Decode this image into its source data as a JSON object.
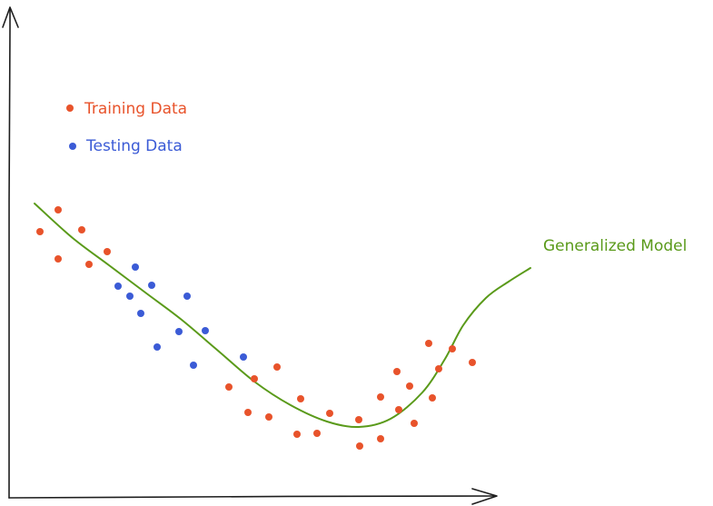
{
  "chart_data": {
    "type": "scatter",
    "title": "",
    "xlabel": "",
    "ylabel": "",
    "grid": false,
    "legend_placement": "top-left",
    "colors": {
      "training": "#e8532b",
      "testing": "#3b5bd6",
      "model": "#5a9a1a",
      "axis": "#1e1e1e"
    },
    "series": [
      {
        "name": "Training Data",
        "kind": "points",
        "points": [
          [
            44,
            255
          ],
          [
            64,
            231
          ],
          [
            64,
            285
          ],
          [
            90,
            253
          ],
          [
            98,
            291
          ],
          [
            118,
            277
          ],
          [
            252,
            426
          ],
          [
            273,
            454
          ],
          [
            280,
            417
          ],
          [
            296,
            459
          ],
          [
            305,
            404
          ],
          [
            327,
            478
          ],
          [
            331,
            439
          ],
          [
            349,
            477
          ],
          [
            363,
            455
          ],
          [
            395,
            462
          ],
          [
            396,
            491
          ],
          [
            419,
            483
          ],
          [
            419,
            437
          ],
          [
            437,
            409
          ],
          [
            439,
            451
          ],
          [
            451,
            425
          ],
          [
            456,
            466
          ],
          [
            472,
            378
          ],
          [
            476,
            438
          ],
          [
            483,
            406
          ],
          [
            498,
            384
          ],
          [
            520,
            399
          ]
        ]
      },
      {
        "name": "Testing Data",
        "kind": "points",
        "points": [
          [
            130,
            315
          ],
          [
            143,
            326
          ],
          [
            149,
            294
          ],
          [
            155,
            345
          ],
          [
            167,
            314
          ],
          [
            173,
            382
          ],
          [
            197,
            365
          ],
          [
            206,
            326
          ],
          [
            213,
            402
          ],
          [
            226,
            364
          ],
          [
            268,
            393
          ]
        ]
      },
      {
        "name": "Generalized Model",
        "kind": "curve",
        "points": [
          [
            38,
            224
          ],
          [
            80,
            262
          ],
          [
            120,
            292
          ],
          [
            160,
            322
          ],
          [
            200,
            352
          ],
          [
            240,
            386
          ],
          [
            280,
            420
          ],
          [
            320,
            446
          ],
          [
            360,
            464
          ],
          [
            395,
            470
          ],
          [
            430,
            461
          ],
          [
            465,
            432
          ],
          [
            490,
            395
          ],
          [
            510,
            358
          ],
          [
            535,
            328
          ],
          [
            560,
            310
          ],
          [
            584,
            295
          ]
        ]
      }
    ],
    "legend": {
      "training_label": "Training Data",
      "testing_label": "Testing Data"
    },
    "annotations": {
      "model_label": "Generalized Model"
    }
  }
}
